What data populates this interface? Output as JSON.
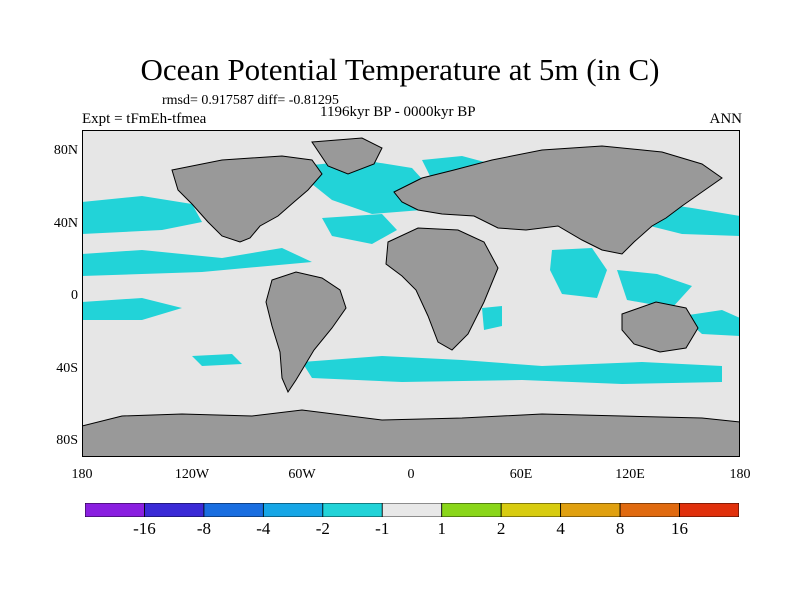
{
  "title": "Ocean Potential Temperature at 5m (in C)",
  "stats": "rmsd= 0.917587 diff= -0.81295",
  "experiment": "Expt = tFmEh-tfmea",
  "period": "1196kyr BP - 0000kyr BP",
  "season": "ANN",
  "y_ticks": [
    "80N",
    "40N",
    "0",
    "40S",
    "80S"
  ],
  "x_ticks": [
    "180",
    "120W",
    "60W",
    "0",
    "60E",
    "120E",
    "180"
  ],
  "colors": {
    "land": "#999999",
    "neutral": "#e6e6e6",
    "cool": "#22d3d8",
    "background": "#ffffff"
  },
  "colorbar": {
    "colors": [
      "#8a1fe0",
      "#3a2ad6",
      "#1a6ee0",
      "#16a6e6",
      "#22d3d8",
      "#e8e8e8",
      "#8ad61a",
      "#d8cc10",
      "#e0a010",
      "#e06a10",
      "#e0300c"
    ],
    "labels": [
      "-16",
      "-8",
      "-4",
      "-2",
      "-1",
      "1",
      "2",
      "4",
      "8",
      "16"
    ]
  }
}
